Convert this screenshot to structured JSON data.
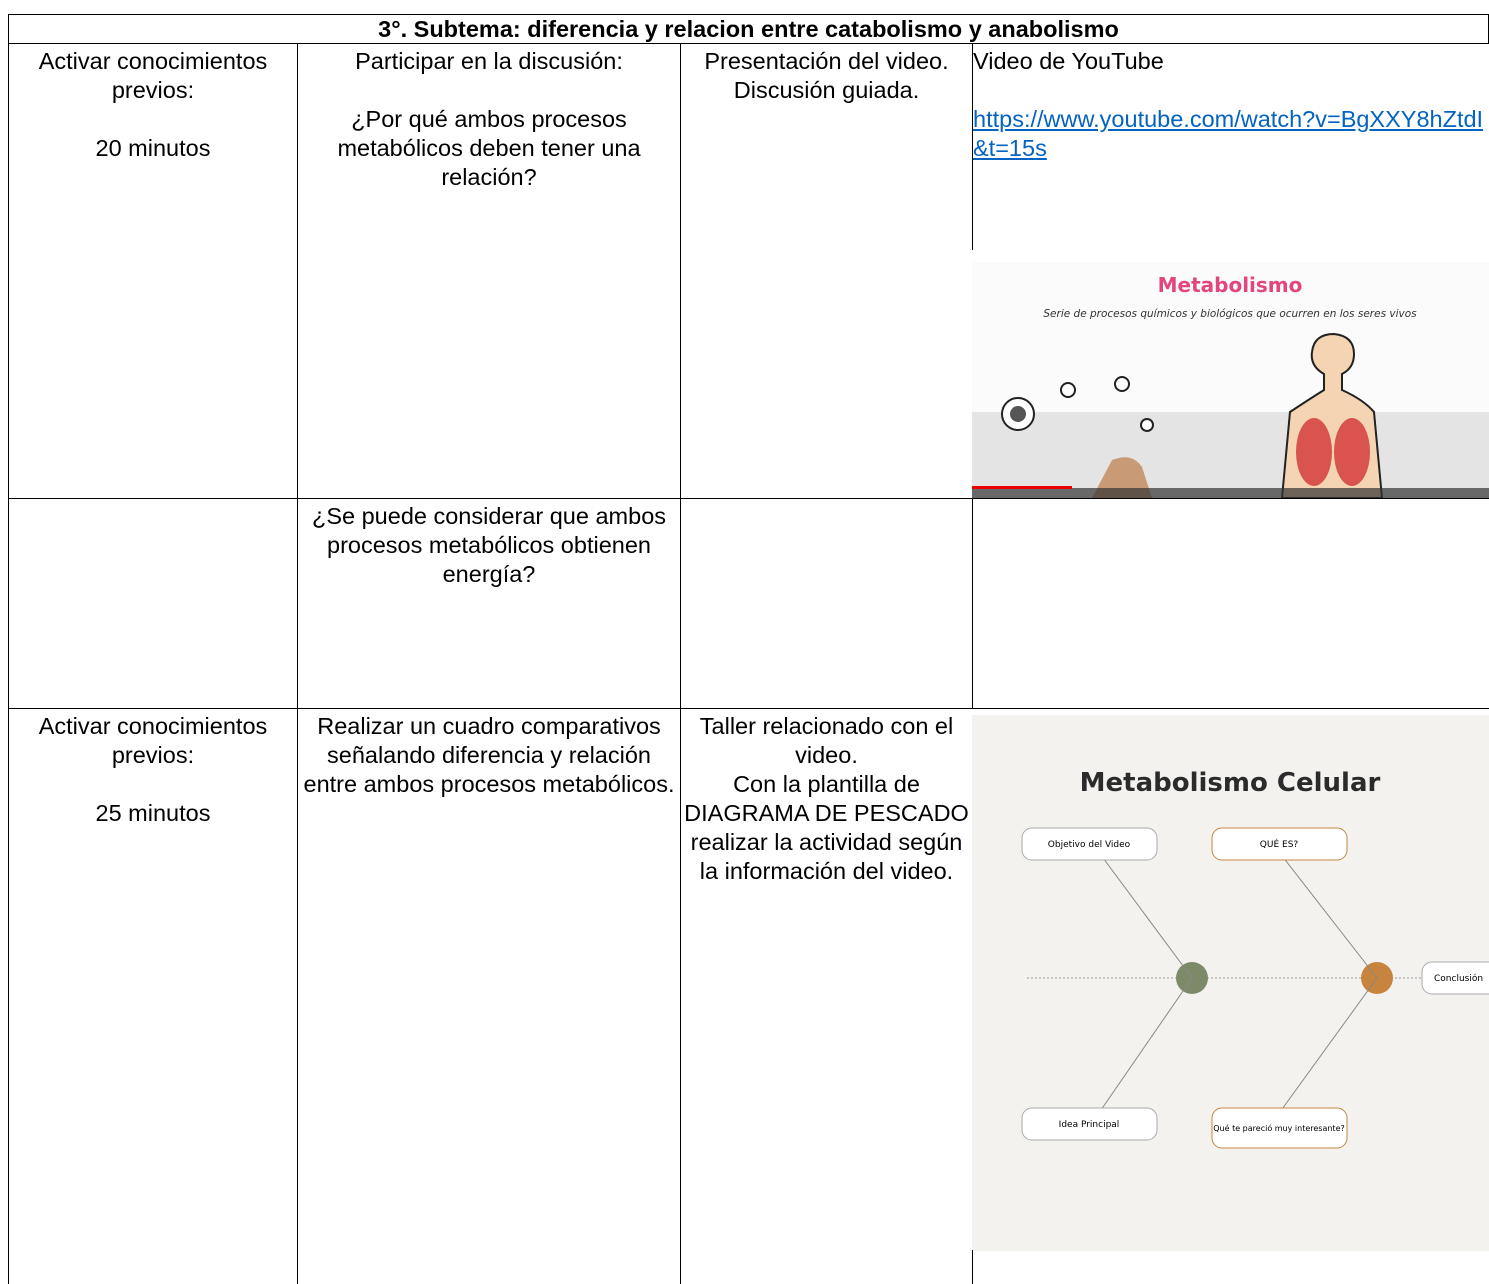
{
  "header": {
    "title": "3°. Subtema: diferencia y relacion entre catabolismo y anabolismo"
  },
  "table": {
    "rows": [
      [
        [
          "Activar conocimientos previos:",
          "20 minutos"
        ],
        [
          "Participar en la discusión:",
          "¿Por qué ambos procesos metabólicos deben tener una relación?"
        ],
        [
          "Presentación del video. Discusión guiada."
        ],
        [
          "Video de YouTube",
          "https://www.youtube.com/watch?v=BgXXY8hZtdI&t=15s"
        ]
      ],
      [
        [],
        [
          "¿Se puede considerar que ambos procesos metabólicos obtienen energía?"
        ],
        [],
        []
      ],
      [
        [
          "Activar conocimientos previos:",
          "25 minutos"
        ],
        [
          "Realizar un cuadro comparativos señalando diferencia y relación entre ambos procesos metabólicos."
        ],
        [
          "Taller relacionado con el video.",
          "Con la plantilla de DIAGRAMA DE PESCADO realizar la actividad según la información del video."
        ],
        []
      ]
    ]
  },
  "images": [
    {
      "title": "Metabolismo",
      "subtitle": "Serie de procesos químicos y biológicos que ocurren en los seres vivos"
    },
    {
      "title": "Metabolismo Celular",
      "labels": [
        "Objetivo del Video",
        "QUÉ ES?",
        "Conclusión",
        "Idea Principal",
        "Qué te pareció muy interesante?"
      ]
    }
  ]
}
